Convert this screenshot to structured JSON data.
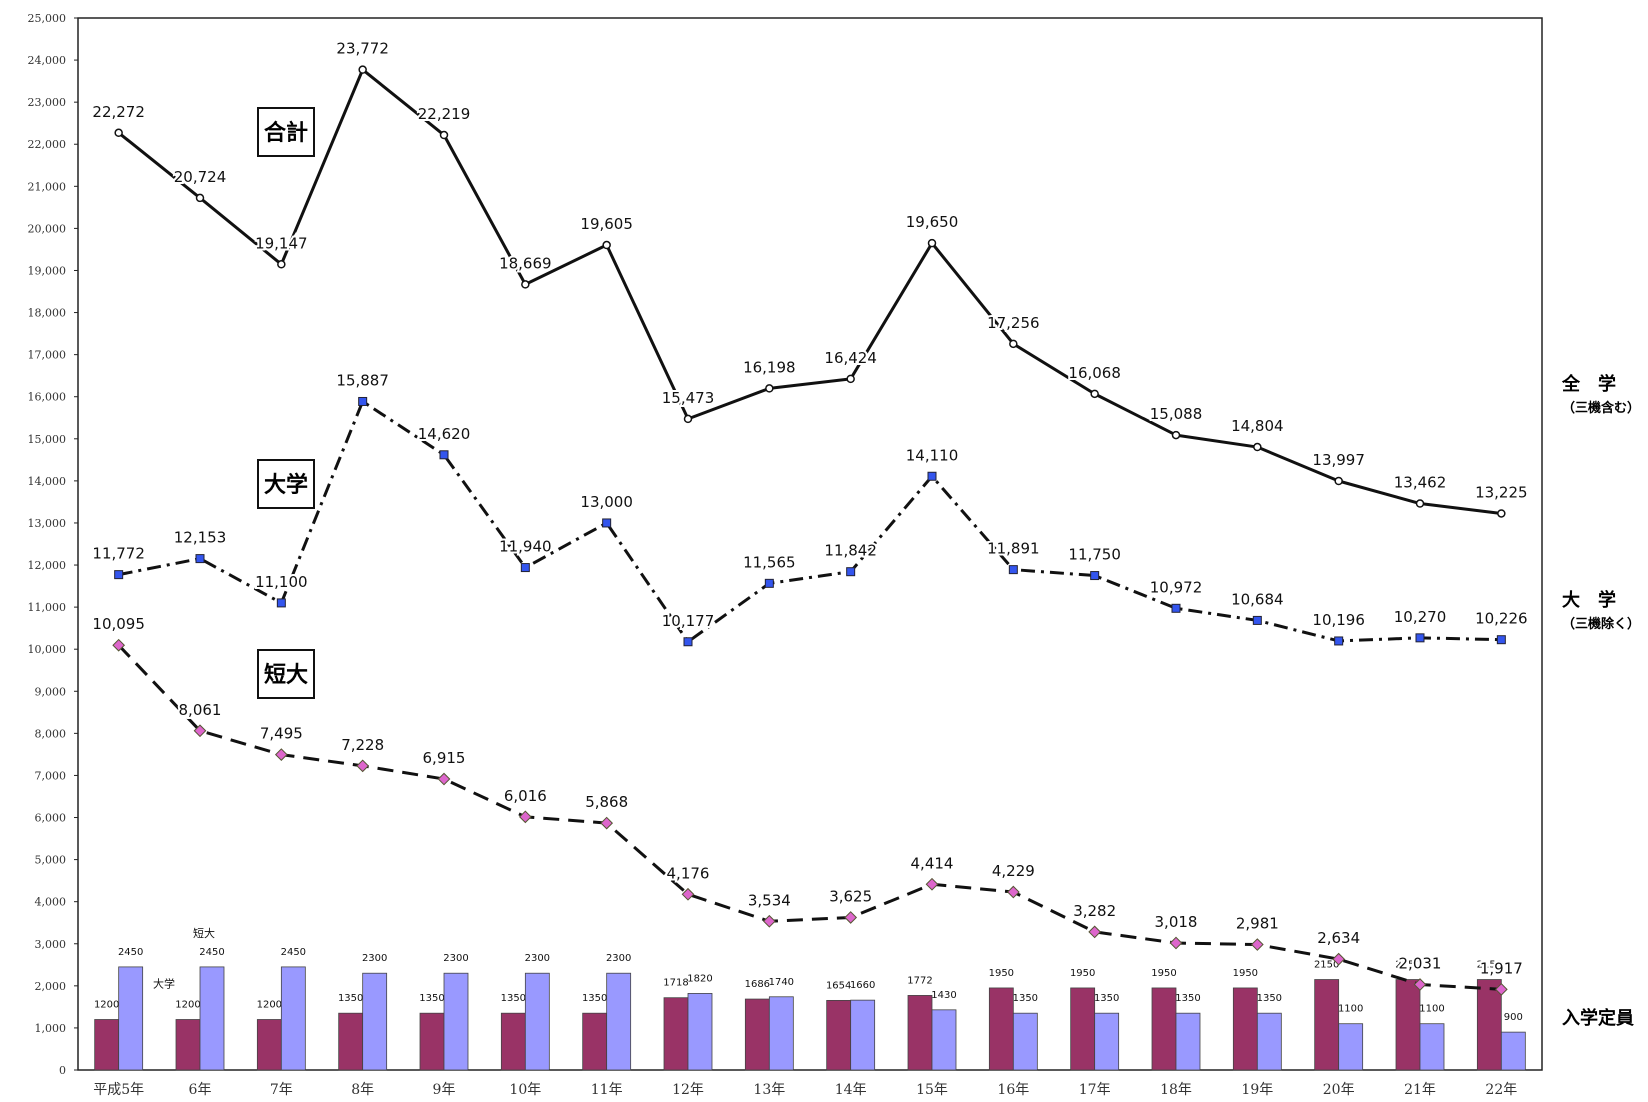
{
  "chart_data": {
    "type": "line",
    "categories": [
      "平成5年",
      "6年",
      "7年",
      "8年",
      "9年",
      "10年",
      "11年",
      "12年",
      "13年",
      "14年",
      "15年",
      "16年",
      "17年",
      "18年",
      "19年",
      "20年",
      "21年",
      "22年"
    ],
    "ylim": [
      0,
      25000
    ],
    "yticks": [
      "0",
      "1,000",
      "2,000",
      "3,000",
      "4,000",
      "5,000",
      "6,000",
      "7,000",
      "8,000",
      "9,000",
      "10,000",
      "11,000",
      "12,000",
      "13,000",
      "14,000",
      "15,000",
      "16,000",
      "17,000",
      "18,000",
      "19,000",
      "20,000",
      "21,000",
      "22,000",
      "23,000",
      "24,000",
      "25,000"
    ],
    "series": [
      {
        "name": "合計",
        "style": "solid",
        "color": "#111111",
        "values": [
          22272,
          20724,
          19147,
          23772,
          22219,
          18669,
          19605,
          15473,
          16198,
          16424,
          19650,
          17256,
          16068,
          15088,
          14804,
          13997,
          13462,
          13225
        ],
        "labels": [
          "22,272",
          "20,724",
          "19,147",
          "23,772",
          "22,219",
          "18,669",
          "19,605",
          "15,473",
          "16,198",
          "16,424",
          "19,650",
          "17,256",
          "16,068",
          "15,088",
          "14,804",
          "13,997",
          "13,462",
          "13,225"
        ]
      },
      {
        "name": "大学",
        "style": "dashdot",
        "color": "#111111",
        "marker_color": "#3355ee",
        "values": [
          11772,
          12153,
          11100,
          15887,
          14620,
          11940,
          13000,
          10177,
          11565,
          11842,
          14110,
          11891,
          11750,
          10972,
          10684,
          10196,
          10270,
          10226
        ],
        "labels": [
          "11,772",
          "12,153",
          "11,100",
          "15,887",
          "14,620",
          "11,940",
          "13,000",
          "10,177",
          "11,565",
          "11,842",
          "14,110",
          "11,891",
          "11,750",
          "10,972",
          "10,684",
          "10,196",
          "10,270",
          "10,226"
        ]
      },
      {
        "name": "短大",
        "style": "dashed",
        "color": "#111111",
        "marker_color": "#dd66cc",
        "values": [
          10095,
          8061,
          7495,
          7228,
          6915,
          6016,
          5868,
          4176,
          3534,
          3625,
          4414,
          4229,
          3282,
          3018,
          2981,
          2634,
          2031,
          1917
        ],
        "labels": [
          "10,095",
          "8,061",
          "7,495",
          "7,228",
          "6,915",
          "6,016",
          "5,868",
          "4,176",
          "3,534",
          "3,625",
          "4,414",
          "4,229",
          "3,282",
          "3,018",
          "2,981",
          "2,634",
          "2,031",
          "1,917"
        ]
      }
    ],
    "bars": [
      {
        "name": "大学",
        "color": "#993366",
        "values": [
          1200,
          1200,
          1200,
          1350,
          1350,
          1350,
          1350,
          1718,
          1686,
          1654,
          1772,
          1950,
          1950,
          1950,
          1950,
          2150,
          2150,
          2150
        ],
        "labels": [
          "1200",
          "1200",
          "1200",
          "1350",
          "1350",
          "1350",
          "1350",
          "1718",
          "1686",
          "1654",
          "1772",
          "1950",
          "1950",
          "1950",
          "1950",
          "2150",
          "2150",
          "2150"
        ]
      },
      {
        "name": "短大",
        "color": "#9999ff",
        "values": [
          2450,
          2450,
          2450,
          2300,
          2300,
          2300,
          2300,
          1820,
          1740,
          1660,
          1430,
          1350,
          1350,
          1350,
          1350,
          1100,
          1100,
          900
        ],
        "labels": [
          "2450",
          "2450",
          "2450",
          "2300",
          "2300",
          "2300",
          "2300",
          "1820",
          "1740",
          "1660",
          "1430",
          "1350",
          "1350",
          "1350",
          "1350",
          "1100",
          "1100",
          "900"
        ]
      }
    ],
    "bar_annotations": {
      "univ": "大学",
      "junior": "短大"
    },
    "line_boxes": [
      "合計",
      "大学",
      "短大"
    ],
    "right_labels": [
      {
        "main": "全　学",
        "sub": "（三機含む）"
      },
      {
        "main": "大　学",
        "sub": "（三機除く）"
      },
      {
        "main": "入学定員",
        "sub": ""
      }
    ]
  }
}
